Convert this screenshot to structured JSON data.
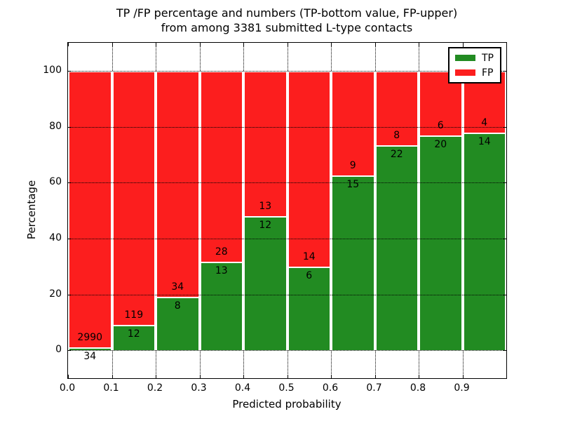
{
  "title": {
    "line1": "TP /FP percentage and numbers (TP-bottom value, FP-upper)",
    "line2": "from among 3381 submitted L-type contacts"
  },
  "axes": {
    "ylabel": "Percentage",
    "xlabel": "Predicted probability",
    "ytick_values": [
      0,
      20,
      40,
      60,
      80,
      100
    ],
    "ytick_labels": [
      "0",
      "20",
      "40",
      "60",
      "80",
      "100"
    ],
    "xtick_values": [
      0.0,
      0.1,
      0.2,
      0.3,
      0.4,
      0.5,
      0.6,
      0.7,
      0.8,
      0.9
    ],
    "xtick_labels": [
      "0.0",
      "0.1",
      "0.2",
      "0.3",
      "0.4",
      "0.5",
      "0.6",
      "0.7",
      "0.8",
      "0.9"
    ],
    "ylim": [
      -10,
      110
    ],
    "xlim": [
      0,
      1
    ],
    "grid": "dotted"
  },
  "legend": {
    "position": "upper-right",
    "items": [
      {
        "label": "TP",
        "color": "#228b22"
      },
      {
        "label": "FP",
        "color": "#fc1e1e"
      }
    ]
  },
  "chart_data": {
    "type": "bar",
    "stacked": true,
    "normalized_to_percent": true,
    "title": "TP /FP percentage and numbers (TP-bottom value, FP-upper) from among 3381 submitted L-type contacts",
    "xlabel": "Predicted probability",
    "ylabel": "Percentage",
    "total_contacts": 3381,
    "bin_edges": [
      0.0,
      0.1,
      0.2,
      0.3,
      0.4,
      0.5,
      0.6,
      0.7,
      0.8,
      0.9,
      1.0
    ],
    "categories": [
      "0.0-0.1",
      "0.1-0.2",
      "0.2-0.3",
      "0.3-0.4",
      "0.4-0.5",
      "0.5-0.6",
      "0.6-0.7",
      "0.7-0.8",
      "0.8-0.9",
      "0.9-1.0"
    ],
    "series": [
      {
        "name": "TP",
        "color": "#228b22",
        "values": [
          34,
          12,
          8,
          13,
          12,
          6,
          15,
          22,
          20,
          14
        ]
      },
      {
        "name": "FP",
        "color": "#fc1e1e",
        "values": [
          2990,
          119,
          34,
          28,
          13,
          14,
          9,
          8,
          6,
          4
        ]
      }
    ],
    "tp_percent": [
      1.1,
      9.2,
      19.0,
      31.7,
      48.0,
      30.0,
      62.5,
      73.3,
      76.9,
      77.8
    ],
    "ylim": [
      -10,
      110
    ],
    "grid": true,
    "legend_position": "upper right"
  }
}
